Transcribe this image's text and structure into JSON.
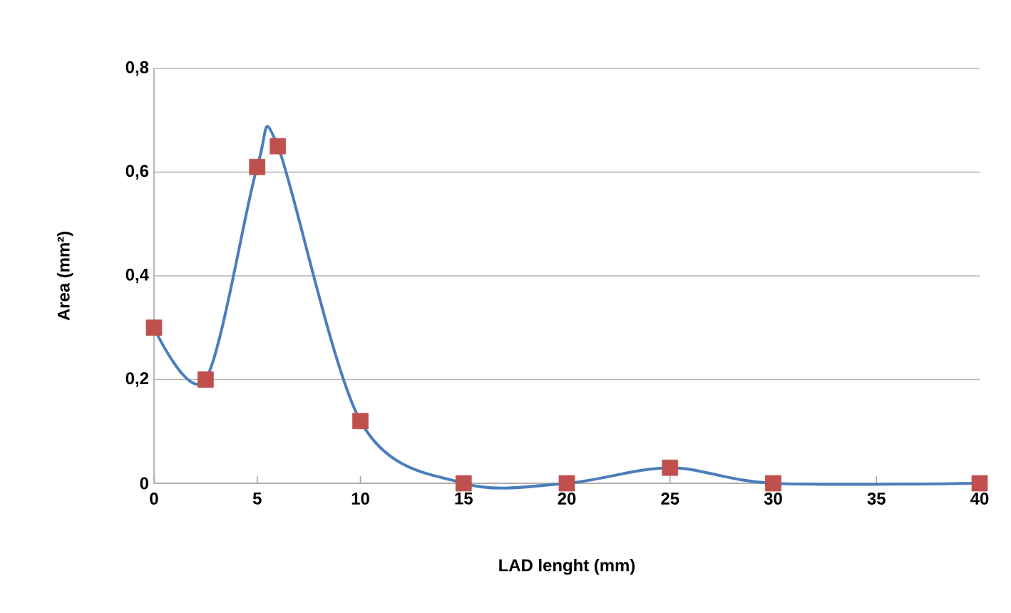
{
  "chart_data": {
    "type": "line",
    "xlabel": "LAD lenght (mm)",
    "ylabel": "Area (mm²)",
    "series": [
      {
        "x": [
          0,
          2.5,
          5,
          6,
          10,
          15,
          20,
          25,
          30,
          40
        ],
        "values": [
          0.3,
          0.2,
          0.61,
          0.65,
          0.12,
          0,
          0,
          0.03,
          0,
          0
        ],
        "color": "#4a7ebb",
        "colors": [
          "#c0504d",
          "#c0504d",
          "#c0504d",
          "#c0504d",
          "#c0504d",
          "#c0504d",
          "#c0504d",
          "#c0504d",
          "#c0504d",
          "#c0504d"
        ]
      }
    ],
    "xlim": [
      0,
      40
    ],
    "xticks": [
      0,
      5,
      10,
      15,
      20,
      25,
      30,
      35,
      40
    ],
    "ylim": [
      0,
      0.8
    ],
    "yticks": [
      {
        "value": 0,
        "label": "0"
      },
      {
        "value": 0.2,
        "label": "0,2"
      },
      {
        "value": 0.4,
        "label": "0,4"
      },
      {
        "value": 0.6,
        "label": "0,6"
      },
      {
        "value": 0.8,
        "label": "0,8"
      }
    ],
    "grid": "y",
    "marker": "square",
    "line_style": "solid"
  }
}
